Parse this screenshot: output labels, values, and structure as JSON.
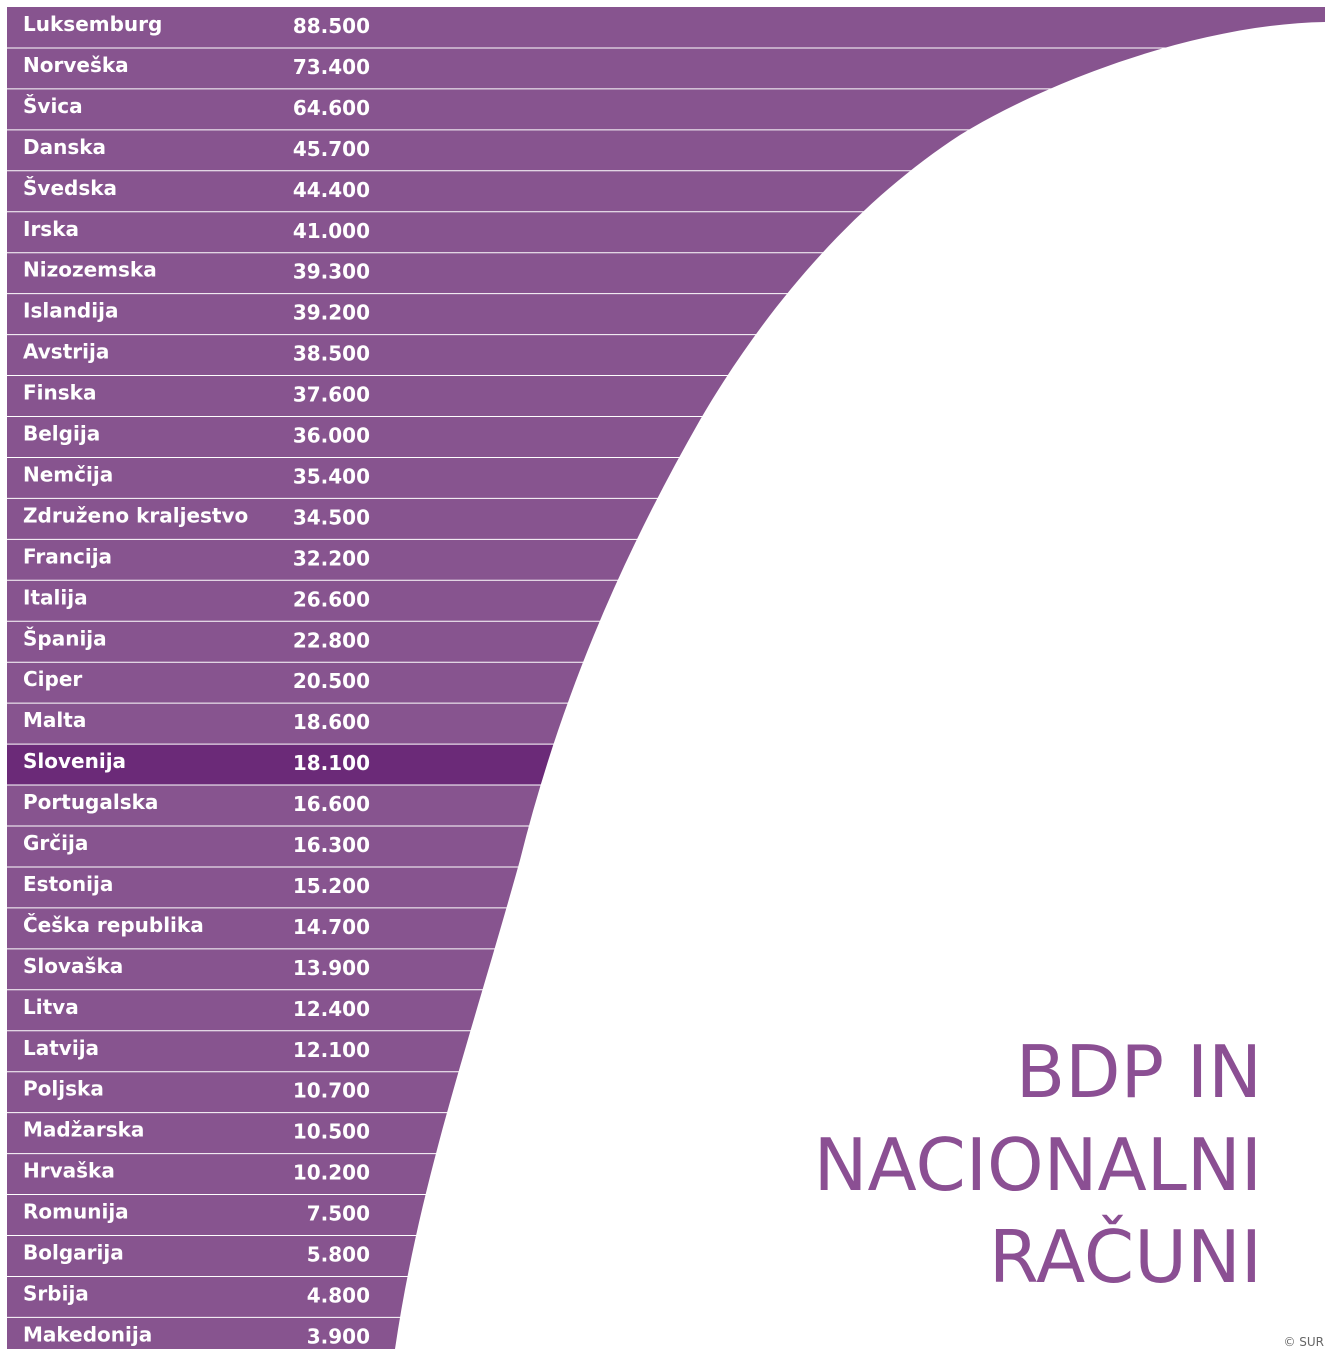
{
  "rows": [
    {
      "name": "Luksemburg",
      "value": "88.500"
    },
    {
      "name": "Norveška",
      "value": "73.400"
    },
    {
      "name": "Švica",
      "value": "64.600"
    },
    {
      "name": "Danska",
      "value": "45.700"
    },
    {
      "name": "Švedska",
      "value": "44.400"
    },
    {
      "name": "Irska",
      "value": "41.000"
    },
    {
      "name": "Nizozemska",
      "value": "39.300"
    },
    {
      "name": "Islandija",
      "value": "39.200"
    },
    {
      "name": "Avstrija",
      "value": "38.500"
    },
    {
      "name": "Finska",
      "value": "37.600"
    },
    {
      "name": "Belgija",
      "value": "36.000"
    },
    {
      "name": "Nemčija",
      "value": "35.400"
    },
    {
      "name": "Združeno kraljestvo",
      "value": "34.500"
    },
    {
      "name": "Francija",
      "value": "32.200"
    },
    {
      "name": "Italija",
      "value": "26.600"
    },
    {
      "name": "Španija",
      "value": "22.800"
    },
    {
      "name": "Ciper",
      "value": "20.500"
    },
    {
      "name": "Malta",
      "value": "18.600"
    },
    {
      "name": "Slovenija",
      "value": "18.100"
    },
    {
      "name": "Portugalska",
      "value": "16.600"
    },
    {
      "name": "Grčija",
      "value": "16.300"
    },
    {
      "name": "Estonija",
      "value": "15.200"
    },
    {
      "name": "Češka republika",
      "value": "14.700"
    },
    {
      "name": "Slovaška",
      "value": "13.900"
    },
    {
      "name": "Litva",
      "value": "12.400"
    },
    {
      "name": "Latvija",
      "value": "12.100"
    },
    {
      "name": "Poljska",
      "value": "10.700"
    },
    {
      "name": "Madžarska",
      "value": "10.500"
    },
    {
      "name": "Hrvaška",
      "value": "10.200"
    },
    {
      "name": "Romunija",
      "value": "7.500"
    },
    {
      "name": "Bolgarija",
      "value": "5.800"
    },
    {
      "name": "Srbija",
      "value": "4.800"
    },
    {
      "name": "Makedonija",
      "value": "3.900"
    }
  ],
  "title": [
    "BDP IN",
    "NACIONALNI",
    "RAČUNI"
  ],
  "credit": "© SUR"
}
